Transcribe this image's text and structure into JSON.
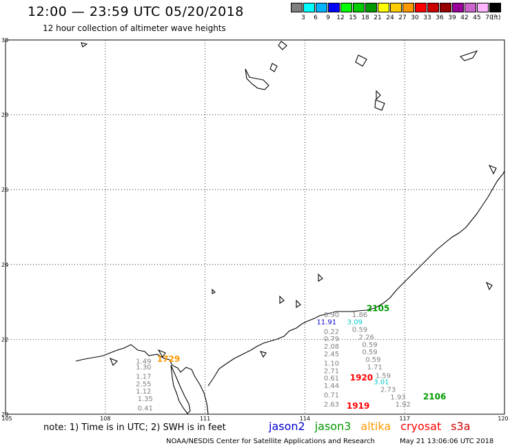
{
  "header": {
    "title": "12:00 — 23:59 UTC 05/20/2018",
    "subtitle": "12 hour collection of altimeter wave heights"
  },
  "legend": {
    "unit": "(ft)",
    "bins": [
      {
        "label": "3",
        "color": "#7f7f7f"
      },
      {
        "label": "6",
        "color": "#00ffff"
      },
      {
        "label": "9",
        "color": "#00b4ff"
      },
      {
        "label": "12",
        "color": "#0000ff"
      },
      {
        "label": "15",
        "color": "#00ff00"
      },
      {
        "label": "18",
        "color": "#00cc00"
      },
      {
        "label": "21",
        "color": "#009900"
      },
      {
        "label": "24",
        "color": "#ffff00"
      },
      {
        "label": "27",
        "color": "#ffcc00"
      },
      {
        "label": "30",
        "color": "#ff9900"
      },
      {
        "label": "33",
        "color": "#ff0000"
      },
      {
        "label": "36",
        "color": "#cc0000"
      },
      {
        "label": "39",
        "color": "#990000"
      },
      {
        "label": "42",
        "color": "#990099"
      },
      {
        "label": "45",
        "color": "#cc66cc"
      },
      {
        "label": "70",
        "color": "#ffb4ff"
      },
      {
        "label": "",
        "color": "#000000"
      }
    ]
  },
  "map": {
    "lon_ticks": [
      "105",
      "108",
      "111",
      "114",
      "117",
      "120"
    ],
    "lat_ticks": [
      "30",
      "28",
      "26",
      "24",
      "22",
      "20"
    ],
    "grid": "dotted",
    "colors": {
      "land": "#000000",
      "gray": "#808080",
      "jason2": "#0000cc",
      "jason3": "#009900",
      "altika": "#ff9900",
      "cryosat": "#ff0000",
      "s3a": "#cc0000",
      "cyan": "#00cccc"
    },
    "pass_labels": [
      {
        "text": "1729",
        "lon": 109.9,
        "lat": 21.4,
        "sat": "altika"
      },
      {
        "text": "2105",
        "lon": 116.2,
        "lat": 22.75,
        "sat": "jason3"
      },
      {
        "text": "1920",
        "lon": 115.7,
        "lat": 20.9,
        "sat": "cryosat"
      },
      {
        "text": "1919",
        "lon": 115.6,
        "lat": 20.15,
        "sat": "cryosat"
      },
      {
        "text": "2106",
        "lon": 117.9,
        "lat": 20.4,
        "sat": "jason3"
      }
    ],
    "track_values": [
      {
        "text": "1.49",
        "lon": 109.15,
        "lat": 21.35,
        "color": "gray"
      },
      {
        "text": "1.30",
        "lon": 109.15,
        "lat": 21.2,
        "color": "gray"
      },
      {
        "text": "1.17",
        "lon": 109.15,
        "lat": 20.95,
        "color": "gray"
      },
      {
        "text": "2.55",
        "lon": 109.15,
        "lat": 20.75,
        "color": "gray"
      },
      {
        "text": "1.12",
        "lon": 109.15,
        "lat": 20.55,
        "color": "gray"
      },
      {
        "text": "1.35",
        "lon": 109.2,
        "lat": 20.35,
        "color": "gray"
      },
      {
        "text": "0.41",
        "lon": 109.2,
        "lat": 20.1,
        "color": "gray"
      },
      {
        "text": "0.90",
        "lon": 114.8,
        "lat": 22.6,
        "color": "gray"
      },
      {
        "text": "11.91",
        "lon": 114.65,
        "lat": 22.4,
        "color": "jason2"
      },
      {
        "text": "0.22",
        "lon": 114.8,
        "lat": 22.15,
        "color": "gray"
      },
      {
        "text": "0.79",
        "lon": 114.8,
        "lat": 21.95,
        "color": "gray"
      },
      {
        "text": "2.08",
        "lon": 114.8,
        "lat": 21.75,
        "color": "gray"
      },
      {
        "text": "2.45",
        "lon": 114.8,
        "lat": 21.55,
        "color": "gray"
      },
      {
        "text": "1.10",
        "lon": 114.8,
        "lat": 21.3,
        "color": "gray"
      },
      {
        "text": "2.71",
        "lon": 114.8,
        "lat": 21.1,
        "color": "gray"
      },
      {
        "text": "0.61",
        "lon": 114.8,
        "lat": 20.9,
        "color": "gray"
      },
      {
        "text": "1.44",
        "lon": 114.8,
        "lat": 20.7,
        "color": "gray"
      },
      {
        "text": "0.71",
        "lon": 114.8,
        "lat": 20.45,
        "color": "gray"
      },
      {
        "text": "2.63",
        "lon": 114.8,
        "lat": 20.2,
        "color": "gray"
      },
      {
        "text": "1.86",
        "lon": 115.65,
        "lat": 22.6,
        "color": "gray"
      },
      {
        "text": "3.09",
        "lon": 115.5,
        "lat": 22.4,
        "color": "cyan"
      },
      {
        "text": "0.59",
        "lon": 115.65,
        "lat": 22.2,
        "color": "gray"
      },
      {
        "text": "2.26",
        "lon": 115.85,
        "lat": 22.0,
        "color": "gray"
      },
      {
        "text": "0.59",
        "lon": 115.95,
        "lat": 21.8,
        "color": "gray"
      },
      {
        "text": "0.59",
        "lon": 115.95,
        "lat": 21.6,
        "color": "gray"
      },
      {
        "text": "0.59",
        "lon": 116.05,
        "lat": 21.4,
        "color": "gray"
      },
      {
        "text": "1.71",
        "lon": 116.1,
        "lat": 21.2,
        "color": "gray"
      },
      {
        "text": "1.59",
        "lon": 116.35,
        "lat": 20.97,
        "color": "gray"
      },
      {
        "text": "3.01",
        "lon": 116.3,
        "lat": 20.8,
        "color": "cyan"
      },
      {
        "text": "2.73",
        "lon": 116.5,
        "lat": 20.6,
        "color": "gray"
      },
      {
        "text": "1.93",
        "lon": 116.8,
        "lat": 20.4,
        "color": "gray"
      },
      {
        "text": "1.92",
        "lon": 116.95,
        "lat": 20.2,
        "color": "gray"
      }
    ]
  },
  "footer": {
    "note": "note: 1) Time is in UTC; 2) SWH is in feet",
    "satellites": [
      {
        "name": "jason2",
        "color": "#0000cc"
      },
      {
        "name": "jason3",
        "color": "#009900"
      },
      {
        "name": "altika",
        "color": "#ff9900"
      },
      {
        "name": "cryosat",
        "color": "#ff0000"
      },
      {
        "name": "s3a",
        "color": "#cc0000"
      }
    ],
    "credit": "NOAA/NESDIS Center for Satellite Applications and Research",
    "timestamp": "May 21 13:06:06 UTC 2018"
  }
}
